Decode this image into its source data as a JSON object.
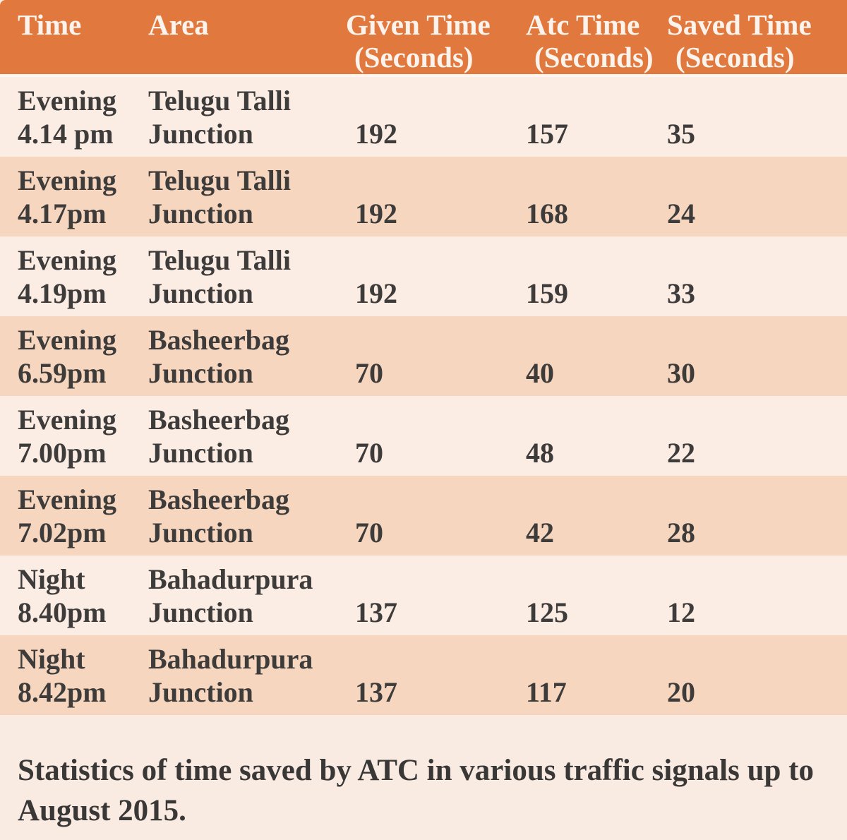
{
  "table": {
    "columns": [
      {
        "label": "Time",
        "sub": ""
      },
      {
        "label": "Area",
        "sub": ""
      },
      {
        "label": "Given Time",
        "sub": "(Seconds)"
      },
      {
        "label": "Atc Time",
        "sub": "(Seconds)"
      },
      {
        "label": "Saved Time",
        "sub": "(Seconds)"
      }
    ],
    "rows": [
      {
        "period": "Evening",
        "time": "4.14 pm",
        "area1": "Telugu Talli",
        "area2": "Junction",
        "given": "192",
        "atc": "157",
        "saved": "35"
      },
      {
        "period": "Evening",
        "time": "4.17pm",
        "area1": "Telugu Talli",
        "area2": "Junction",
        "given": "192",
        "atc": "168",
        "saved": "24"
      },
      {
        "period": "Evening",
        "time": "4.19pm",
        "area1": "Telugu Talli",
        "area2": "Junction",
        "given": "192",
        "atc": "159",
        "saved": "33"
      },
      {
        "period": "Evening",
        "time": "6.59pm",
        "area1": "Basheerbag",
        "area2": "Junction",
        "given": "70",
        "atc": "40",
        "saved": "30"
      },
      {
        "period": "Evening",
        "time": "7.00pm",
        "area1": "Basheerbag",
        "area2": "Junction",
        "given": "70",
        "atc": "48",
        "saved": "22"
      },
      {
        "period": "Evening",
        "time": "7.02pm",
        "area1": "Basheerbag",
        "area2": "Junction",
        "given": "70",
        "atc": "42",
        "saved": "28"
      },
      {
        "period": "Night",
        "time": "8.40pm",
        "area1": "Bahadurpura",
        "area2": "Junction",
        "given": "137",
        "atc": "125",
        "saved": "12"
      },
      {
        "period": "Night",
        "time": "8.42pm",
        "area1": "Bahadurpura",
        "area2": "Junction",
        "given": "137",
        "atc": "117",
        "saved": "20"
      }
    ]
  },
  "caption": "Statistics of time saved by ATC in various traffic signals up to August 2015.",
  "colors": {
    "header_bg": "#E1793E",
    "header_text": "#FBF3EC",
    "row_light": "#FBECE4",
    "row_dark": "#F6D6BE",
    "page_bg": "#F9EAE2",
    "body_text": "#3E3C3B"
  },
  "chart_data": {
    "type": "table",
    "title": "",
    "caption": "Statistics of time saved by ATC in various traffic signals up to August 2015.",
    "columns": [
      "Time",
      "Area",
      "Given Time (Seconds)",
      "Atc Time (Seconds)",
      "Saved Time (Seconds)"
    ],
    "rows": [
      [
        "Evening 4.14 pm",
        "Telugu Talli Junction",
        192,
        157,
        35
      ],
      [
        "Evening 4.17pm",
        "Telugu Talli Junction",
        192,
        168,
        24
      ],
      [
        "Evening 4.19pm",
        "Telugu Talli Junction",
        192,
        159,
        33
      ],
      [
        "Evening 6.59pm",
        "Basheerbag Junction",
        70,
        40,
        30
      ],
      [
        "Evening 7.00pm",
        "Basheerbag Junction",
        70,
        48,
        22
      ],
      [
        "Evening 7.02pm",
        "Basheerbag Junction",
        70,
        42,
        28
      ],
      [
        "Night 8.40pm",
        "Bahadurpura Junction",
        137,
        125,
        12
      ],
      [
        "Night 8.42pm",
        "Bahadurpura Junction",
        137,
        117,
        20
      ]
    ]
  }
}
